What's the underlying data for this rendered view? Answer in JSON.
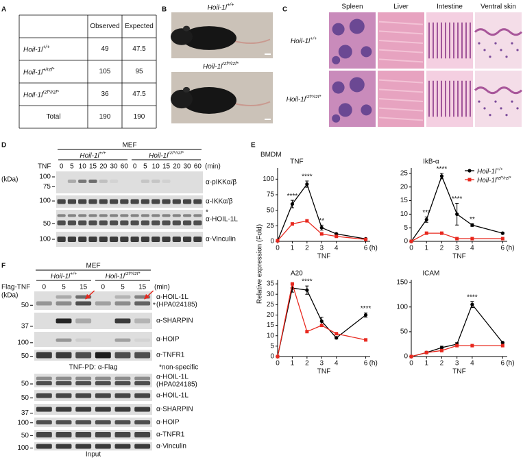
{
  "panel_labels": [
    "A",
    "B",
    "C",
    "D",
    "E",
    "F"
  ],
  "table": {
    "header": [
      "Observed",
      "Expected"
    ],
    "rows": [
      {
        "gene": "Hoil-1l",
        "allele": "+/+",
        "observed": 49,
        "expected": 47.5
      },
      {
        "gene": "Hoil-1l",
        "allele": "+/rzf*",
        "observed": 105,
        "expected": 95
      },
      {
        "gene": "Hoil-1l",
        "allele": "rzf*/rzf*",
        "observed": 36,
        "expected": 47.5
      }
    ],
    "total": {
      "label": "Total",
      "observed": 190,
      "expected": 190
    }
  },
  "genotypes": [
    {
      "gene": "Hoil-1l",
      "allele": "+/+"
    },
    {
      "gene": "Hoil-1l",
      "allele": "rzf*/rzf*"
    }
  ],
  "histology": {
    "tissues": [
      "Spleen",
      "Liver",
      "Intestine",
      "Ventral skin"
    ]
  },
  "blot_d": {
    "cell": "MEF",
    "treatment": "TNF",
    "times": [
      0,
      5,
      10,
      15,
      20,
      30,
      60
    ],
    "time_unit": "(min)",
    "mw_unit": "(kDa)",
    "blots": [
      {
        "antibody": "α-pIKKα/β",
        "markers": [
          100,
          75
        ]
      },
      {
        "antibody": "α-IKKα/β",
        "markers": [
          100
        ]
      },
      {
        "antibody": "α-HOIL-1L",
        "markers": [
          50
        ],
        "note": "*"
      },
      {
        "antibody": "α-Vinculin",
        "markers": [
          100
        ]
      }
    ]
  },
  "bmdm": {
    "label": "BMDM",
    "ylabel": "Relative expression (Fold)",
    "x_unit": "(h)"
  },
  "chart_data": [
    {
      "type": "line",
      "title": "TNF",
      "xlabel": "TNF",
      "x": [
        0,
        1,
        2,
        3,
        4,
        6
      ],
      "xlim": [
        0,
        6.3
      ],
      "xticks": [
        0,
        1,
        2,
        3,
        4,
        6
      ],
      "ylim": [
        0,
        118
      ],
      "yticks": [
        0,
        25,
        50,
        75,
        100
      ],
      "series": [
        {
          "color": "#000000",
          "marker": "circle",
          "values": [
            1,
            60,
            92,
            22,
            12,
            4
          ],
          "errors": [
            0,
            6,
            5,
            4,
            1,
            1
          ]
        },
        {
          "color": "#e8281e",
          "marker": "square",
          "values": [
            1,
            28,
            33,
            12,
            8,
            3
          ]
        }
      ],
      "annotations": [
        {
          "x": 1,
          "text": "****"
        },
        {
          "x": 2,
          "text": "****"
        },
        {
          "x": 3,
          "text": "**"
        }
      ]
    },
    {
      "type": "line",
      "title": "IkB-α",
      "xlabel": "TNF",
      "x": [
        0,
        1,
        2,
        3,
        4,
        6
      ],
      "xlim": [
        0,
        6.3
      ],
      "xticks": [
        0,
        1,
        2,
        3,
        4,
        6
      ],
      "ylim": [
        0,
        27
      ],
      "yticks": [
        0,
        5,
        10,
        15,
        20,
        25
      ],
      "legend": "upper right",
      "series": [
        {
          "color": "#000000",
          "marker": "circle",
          "values": [
            0,
            8,
            24,
            10,
            6,
            3
          ],
          "errors": [
            0,
            1,
            1,
            4,
            0.5,
            0.3
          ]
        },
        {
          "color": "#e8281e",
          "marker": "square",
          "values": [
            0,
            3,
            3,
            1,
            1,
            1
          ]
        }
      ],
      "annotations": [
        {
          "x": 1,
          "text": "***"
        },
        {
          "x": 2,
          "text": "****"
        },
        {
          "x": 3,
          "text": "****"
        },
        {
          "x": 4,
          "text": "**"
        }
      ]
    },
    {
      "type": "line",
      "title": "A20",
      "xlabel": "TNF",
      "x": [
        0,
        1,
        2,
        3,
        4,
        6
      ],
      "xlim": [
        0,
        6.3
      ],
      "xticks": [
        0,
        1,
        2,
        3,
        4,
        6
      ],
      "ylim": [
        0,
        37
      ],
      "yticks": [
        0,
        5,
        10,
        15,
        20,
        25,
        30,
        35
      ],
      "series": [
        {
          "color": "#000000",
          "marker": "circle",
          "values": [
            0,
            33,
            32,
            17,
            9,
            20
          ],
          "errors": [
            0,
            2,
            2,
            2,
            0.5,
            1
          ]
        },
        {
          "color": "#e8281e",
          "marker": "square",
          "values": [
            0,
            35,
            12,
            15,
            11,
            8
          ]
        }
      ],
      "annotations": [
        {
          "x": 2,
          "text": "****"
        },
        {
          "x": 6,
          "text": "****"
        }
      ]
    },
    {
      "type": "line",
      "title": "ICAM",
      "xlabel": "TNF",
      "x": [
        0,
        1,
        2,
        3,
        4,
        6
      ],
      "xlim": [
        0,
        6.3
      ],
      "xticks": [
        0,
        1,
        2,
        3,
        4,
        6
      ],
      "ylim": [
        0,
        155
      ],
      "yticks": [
        0,
        50,
        100,
        150
      ],
      "series": [
        {
          "color": "#000000",
          "marker": "circle",
          "values": [
            0,
            8,
            18,
            25,
            105,
            28
          ],
          "errors": [
            0,
            2,
            3,
            3,
            6,
            1
          ]
        },
        {
          "color": "#e8281e",
          "marker": "square",
          "values": [
            0,
            8,
            12,
            22,
            22,
            22
          ]
        }
      ],
      "annotations": [
        {
          "x": 4,
          "text": "****"
        }
      ]
    }
  ],
  "blot_f": {
    "cell": "MEF",
    "treatment": "Flag-TNF",
    "times": [
      0,
      5,
      15
    ],
    "time_unit": "(min)",
    "mw_unit": "(kDa)",
    "pulldown": [
      {
        "antibody": "α-HOIL-1L",
        "clone": "(HPA024185)",
        "markers": [
          50
        ],
        "note": "*"
      },
      {
        "antibody": "α-SHARPIN",
        "markers": [
          37
        ]
      },
      {
        "antibody": "α-HOIP",
        "markers": [
          100
        ]
      },
      {
        "antibody": "α-TNFR1",
        "markers": [
          50
        ]
      }
    ],
    "pulldown_label": "TNF-PD: α-Flag",
    "footnote": "*non-specific",
    "input": [
      {
        "antibody": "α-HOIL-1L",
        "clone": "(HPA024185)",
        "markers": [
          50
        ]
      },
      {
        "antibody": "α-HOIL-1L",
        "markers": [
          50
        ]
      },
      {
        "antibody": "α-SHARPIN",
        "markers": [
          37
        ]
      },
      {
        "antibody": "α-HOIP",
        "markers": [
          100
        ]
      },
      {
        "antibody": "α-TNFR1",
        "markers": [
          50
        ]
      },
      {
        "antibody": "α-Vinculin",
        "markers": [
          100
        ]
      }
    ],
    "input_label": "Input"
  }
}
